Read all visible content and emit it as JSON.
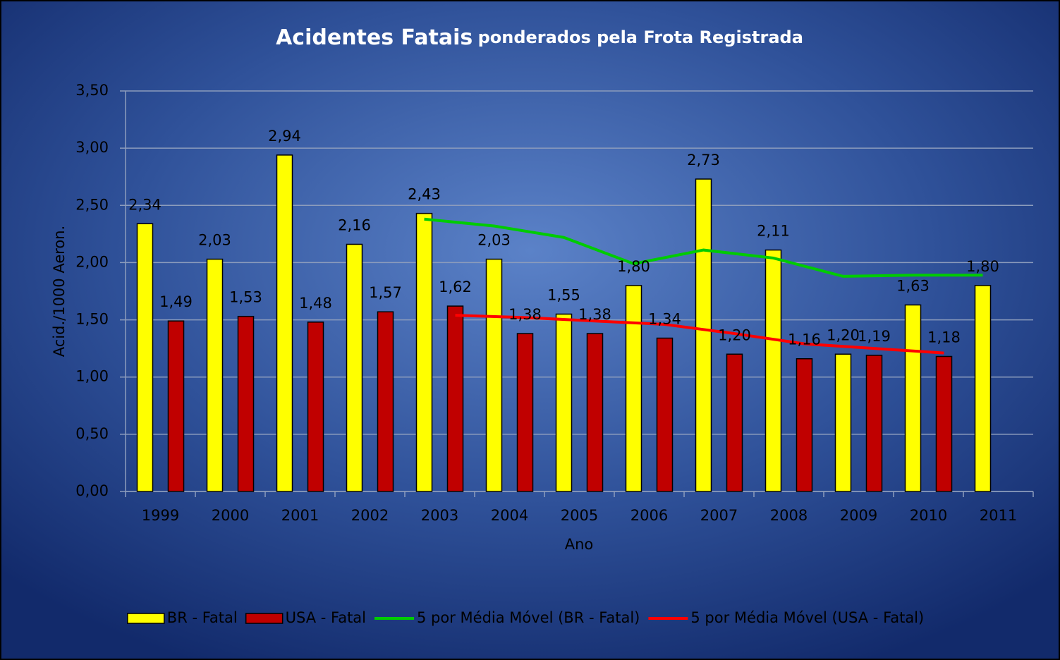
{
  "chart_data": {
    "type": "bar",
    "title": "Acidentes Fatais",
    "subtitle": "ponderados pela Frota Registrada",
    "y_label": "Acid./1000 Aeron.",
    "x_label": "Ano",
    "categories": [
      "1999",
      "2000",
      "2001",
      "2002",
      "2003",
      "2004",
      "2005",
      "2006",
      "2007",
      "2008",
      "2009",
      "2010",
      "2011"
    ],
    "series": [
      {
        "name": "BR - Fatal",
        "type": "bar",
        "color": "#ffff00",
        "values": [
          2.34,
          2.03,
          2.94,
          2.16,
          2.43,
          2.03,
          1.55,
          1.8,
          2.73,
          2.11,
          1.2,
          1.63,
          1.8
        ],
        "value_labels": [
          "2,34",
          "2,03",
          "2,94",
          "2,16",
          "2,43",
          "2,03",
          "1,55",
          "1,80",
          "2,73",
          "2,11",
          "1,20",
          "1,63",
          "1,80"
        ]
      },
      {
        "name": "USA - Fatal",
        "type": "bar",
        "color": "#c00000",
        "values": [
          1.49,
          1.53,
          1.48,
          1.57,
          1.62,
          1.38,
          1.38,
          1.34,
          1.2,
          1.16,
          1.19,
          1.18,
          null
        ],
        "value_labels": [
          "1,49",
          "1,53",
          "1,48",
          "1,57",
          "1,62",
          "1,38",
          "1,38",
          "1,34",
          "1,20",
          "1,16",
          "1,19",
          "1,18",
          null
        ]
      },
      {
        "name": "5 por Média Móvel (BR - Fatal)",
        "type": "line",
        "color": "#00cc00",
        "values": [
          null,
          null,
          null,
          null,
          2.38,
          2.32,
          2.22,
          1.99,
          2.11,
          2.04,
          1.88,
          1.89,
          1.89
        ]
      },
      {
        "name": "5 por Média Móvel (USA - Fatal)",
        "type": "line",
        "color": "#ff0000",
        "values": [
          null,
          null,
          null,
          null,
          1.54,
          1.52,
          1.49,
          1.46,
          1.38,
          1.29,
          1.25,
          1.21,
          null
        ]
      }
    ],
    "ylim": [
      0,
      3.5
    ],
    "yticks": [
      {
        "value": 0,
        "label": "0,00"
      },
      {
        "value": 0.5,
        "label": "0,50"
      },
      {
        "value": 1,
        "label": "1,00"
      },
      {
        "value": 1.5,
        "label": "1,50"
      },
      {
        "value": 2,
        "label": "2,00"
      },
      {
        "value": 2.5,
        "label": "2,50"
      },
      {
        "value": 3,
        "label": "3,00"
      },
      {
        "value": 3.5,
        "label": "3,50"
      }
    ],
    "grid": true,
    "legend": "bottom"
  }
}
